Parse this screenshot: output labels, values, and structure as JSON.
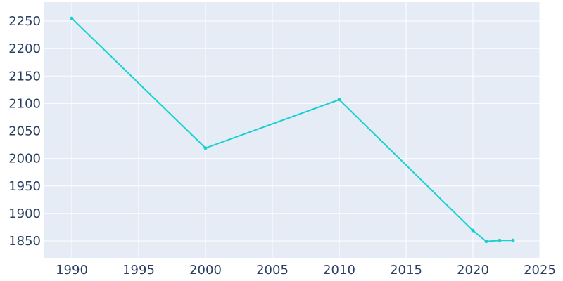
{
  "chart_data": {
    "type": "line",
    "title": "",
    "xlabel": "",
    "ylabel": "",
    "x": [
      1990,
      2000,
      2010,
      2020,
      2021,
      2022,
      2023
    ],
    "values": [
      2255,
      2019,
      2107,
      1869,
      1849,
      1851,
      1851
    ],
    "xlim": [
      1988,
      2025
    ],
    "ylim": [
      1816,
      2267
    ],
    "xticks": [
      "1990",
      "1995",
      "2000",
      "2005",
      "2010",
      "2015",
      "2020",
      "2025"
    ],
    "yticks": [
      "1850",
      "1900",
      "1950",
      "2000",
      "2050",
      "2100",
      "2150",
      "2200",
      "2250"
    ],
    "grid": true,
    "colors": {
      "line": "#17d0cf",
      "plot_bg": "#e5ecf6",
      "grid": "#ffffff",
      "text": "#2a3f5f"
    }
  }
}
